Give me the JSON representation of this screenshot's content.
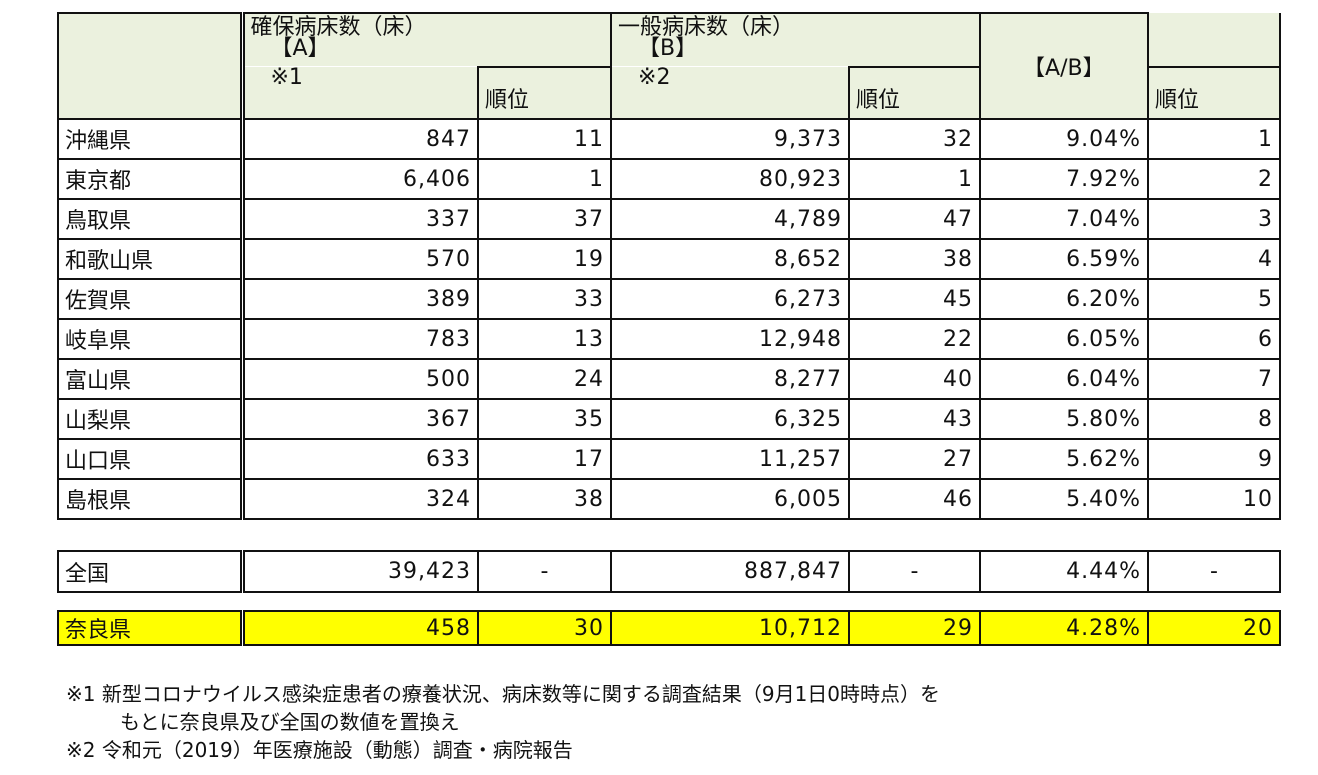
{
  "header": {
    "secured_beds": "確保病床数（床）",
    "secured_beds_code": "【A】",
    "secured_beds_note": "※1",
    "general_beds": "一般病床数（床）",
    "general_beds_code": "【B】",
    "general_beds_note": "※2",
    "ratio": "【A/B】",
    "rank": "順位"
  },
  "rows": [
    {
      "pref": "沖縄県",
      "a": "847",
      "a_rank": "11",
      "b": "9,373",
      "b_rank": "32",
      "ratio": "9.04%",
      "ratio_rank": "1"
    },
    {
      "pref": "東京都",
      "a": "6,406",
      "a_rank": "1",
      "b": "80,923",
      "b_rank": "1",
      "ratio": "7.92%",
      "ratio_rank": "2"
    },
    {
      "pref": "鳥取県",
      "a": "337",
      "a_rank": "37",
      "b": "4,789",
      "b_rank": "47",
      "ratio": "7.04%",
      "ratio_rank": "3"
    },
    {
      "pref": "和歌山県",
      "a": "570",
      "a_rank": "19",
      "b": "8,652",
      "b_rank": "38",
      "ratio": "6.59%",
      "ratio_rank": "4"
    },
    {
      "pref": "佐賀県",
      "a": "389",
      "a_rank": "33",
      "b": "6,273",
      "b_rank": "45",
      "ratio": "6.20%",
      "ratio_rank": "5"
    },
    {
      "pref": "岐阜県",
      "a": "783",
      "a_rank": "13",
      "b": "12,948",
      "b_rank": "22",
      "ratio": "6.05%",
      "ratio_rank": "6"
    },
    {
      "pref": "富山県",
      "a": "500",
      "a_rank": "24",
      "b": "8,277",
      "b_rank": "40",
      "ratio": "6.04%",
      "ratio_rank": "7"
    },
    {
      "pref": "山梨県",
      "a": "367",
      "a_rank": "35",
      "b": "6,325",
      "b_rank": "43",
      "ratio": "5.80%",
      "ratio_rank": "8"
    },
    {
      "pref": "山口県",
      "a": "633",
      "a_rank": "17",
      "b": "11,257",
      "b_rank": "27",
      "ratio": "5.62%",
      "ratio_rank": "9"
    },
    {
      "pref": "島根県",
      "a": "324",
      "a_rank": "38",
      "b": "6,005",
      "b_rank": "46",
      "ratio": "5.40%",
      "ratio_rank": "10"
    }
  ],
  "national": {
    "pref": "全国",
    "a": "39,423",
    "a_rank": "-",
    "b": "887,847",
    "b_rank": "-",
    "ratio": "4.44%",
    "ratio_rank": "-"
  },
  "nara": {
    "pref": "奈良県",
    "a": "458",
    "a_rank": "30",
    "b": "10,712",
    "b_rank": "29",
    "ratio": "4.28%",
    "ratio_rank": "20"
  },
  "notes": {
    "note1_line1": "※1  新型コロナウイルス感染症患者の療養状況、病床数等に関する調査結果（9月1日0時時点）を",
    "note1_line2": "もとに奈良県及び全国の数値を置換え",
    "note2": "※2  令和元（2019）年医療施設（動態）調査・病院報告"
  },
  "colors": {
    "header_bg": "#ebf1de",
    "highlight_bg": "#ffff00"
  }
}
